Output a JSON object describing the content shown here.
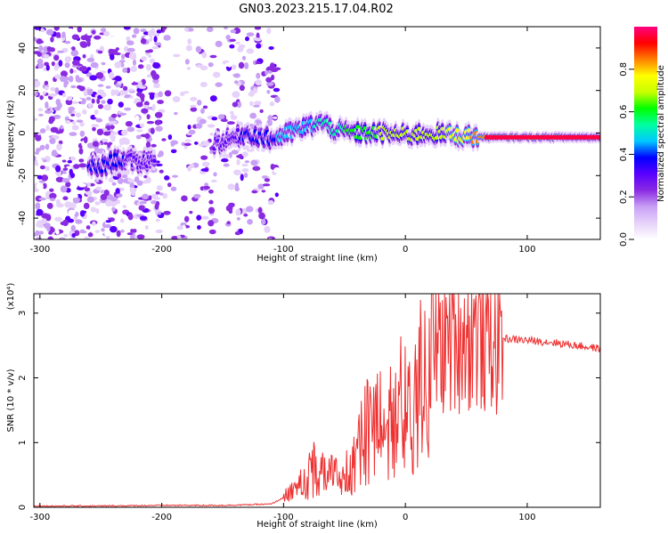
{
  "title": "GN03.2023.215.17.04.R02",
  "chart_data": [
    {
      "type": "heatmap",
      "xlabel": "Height of straight line (km)",
      "ylabel": "Frequency (Hz)",
      "xlim": [
        -305,
        160
      ],
      "ylim": [
        -50,
        50
      ],
      "xticks": [
        "-300",
        "-200",
        "-100",
        "0",
        "100"
      ],
      "yticks": [
        "-40",
        "-20",
        "0",
        "20",
        "40"
      ],
      "colorbar": {
        "label": "Normalized spectral amplitude",
        "range": [
          0,
          1
        ],
        "ticks": [
          "0.0",
          "0.2",
          "0.4",
          "0.6",
          "0.8"
        ],
        "colormap": [
          "#ffffff",
          "#e6d2fa",
          "#c8a0f5",
          "#8a2be2",
          "#5a00ff",
          "#0000ff",
          "#00c8ff",
          "#00ffa0",
          "#00ff00",
          "#c8ff00",
          "#ffff00",
          "#ff8000",
          "#ff0000",
          "#ff0080"
        ]
      },
      "ridge": [
        {
          "x": -250,
          "f": -16,
          "amp": 0.45
        },
        {
          "x": -235,
          "f": -12,
          "amp": 0.4
        },
        {
          "x": -220,
          "f": -14,
          "amp": 0.35
        },
        {
          "x": -150,
          "f": -4,
          "amp": 0.35
        },
        {
          "x": -130,
          "f": 0,
          "amp": 0.4
        },
        {
          "x": -110,
          "f": -3,
          "amp": 0.45
        },
        {
          "x": -90,
          "f": 1,
          "amp": 0.5
        },
        {
          "x": -70,
          "f": 5,
          "amp": 0.55
        },
        {
          "x": -55,
          "f": 1,
          "amp": 0.6
        },
        {
          "x": -40,
          "f": 0,
          "amp": 0.65
        },
        {
          "x": -20,
          "f": 0,
          "amp": 0.7
        },
        {
          "x": 0,
          "f": -1,
          "amp": 0.72
        },
        {
          "x": 20,
          "f": 0,
          "amp": 0.75
        },
        {
          "x": 40,
          "f": -1,
          "amp": 0.78
        },
        {
          "x": 65,
          "f": -2,
          "amp": 0.9
        },
        {
          "x": 100,
          "f": -2,
          "amp": 0.92
        },
        {
          "x": 140,
          "f": -2,
          "amp": 0.9
        },
        {
          "x": 160,
          "f": -2,
          "amp": 0.85
        }
      ]
    },
    {
      "type": "line",
      "xlabel": "Height of straight line (km)",
      "ylabel": "SNR (10 * v/v)",
      "yscale_label": "(x10⁴)",
      "xlim": [
        -305,
        160
      ],
      "ylim": [
        0,
        3.3
      ],
      "xticks": [
        "-300",
        "-200",
        "-100",
        "0",
        "100"
      ],
      "yticks": [
        "0",
        "1",
        "2",
        "3"
      ],
      "series": [
        {
          "color": "#ee3030",
          "x": [
            -305,
            -250,
            -200,
            -150,
            -110,
            -95,
            -85,
            -75,
            -65,
            -55,
            -45,
            -35,
            -25,
            -15,
            -5,
            5,
            15,
            25,
            35,
            45,
            55,
            65,
            75,
            85,
            100,
            120,
            140,
            160
          ],
          "y": [
            0.02,
            0.02,
            0.03,
            0.03,
            0.05,
            0.2,
            0.4,
            0.7,
            0.6,
            0.5,
            0.9,
            1.2,
            1.6,
            1.7,
            1.8,
            2.0,
            2.3,
            2.5,
            2.6,
            2.7,
            2.7,
            2.65,
            2.62,
            2.6,
            2.58,
            2.55,
            2.5,
            2.45
          ]
        }
      ]
    }
  ]
}
